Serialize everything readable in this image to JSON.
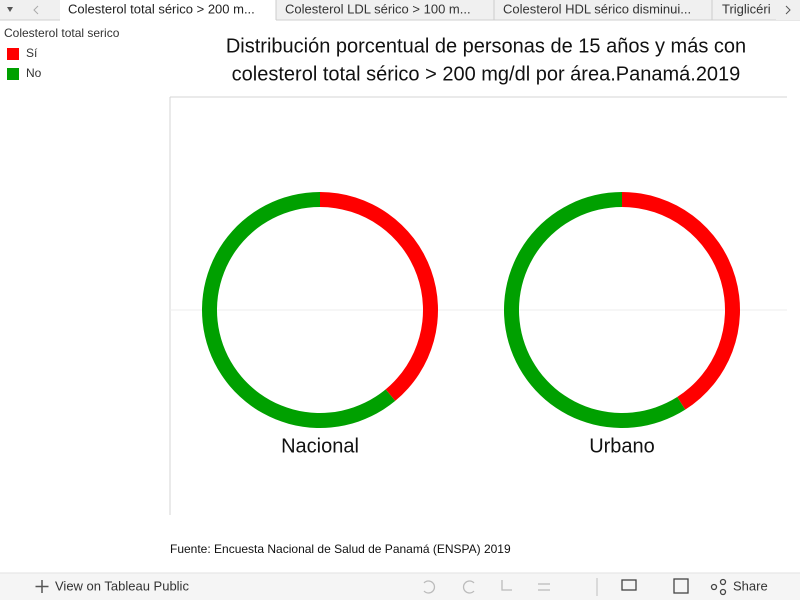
{
  "tabs": [
    "Colesterol total sérico > 200 m...",
    "Colesterol LDL sérico > 100 m...",
    "Colesterol HDL sérico disminui...",
    "Triglicéri"
  ],
  "legend": {
    "title": "Colesterol total serico"
  },
  "title": [
    "Distribución porcentual de personas de 15 años y más con",
    "colesterol total sérico > 200 mg/dl por área.Panamá.2019"
  ],
  "chart_data": [
    {
      "type": "pie",
      "title": "Nacional",
      "categories": [
        "Sí",
        "No"
      ],
      "values": [
        39,
        61
      ],
      "colors": [
        "#ff0000",
        "#00a000"
      ],
      "donut": true
    },
    {
      "type": "pie",
      "title": "Urbano",
      "categories": [
        "Sí",
        "No"
      ],
      "values": [
        41,
        59
      ],
      "colors": [
        "#ff0000",
        "#00a000"
      ],
      "donut": true
    }
  ],
  "source": "Fuente: Encuesta Nacional de Salud de Panamá (ENSPA) 2019",
  "toolbar": {
    "view": "View on Tableau Public",
    "share": "Share"
  }
}
